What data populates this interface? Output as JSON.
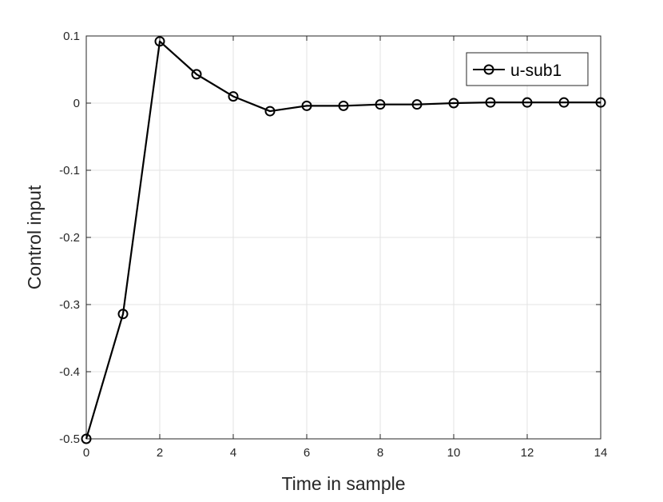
{
  "chart_data": {
    "type": "line",
    "title": "",
    "xlabel": "Time in sample",
    "ylabel": "Control input",
    "xlim": [
      0,
      14
    ],
    "ylim": [
      -0.5,
      0.1
    ],
    "xticks": [
      0,
      2,
      4,
      6,
      8,
      10,
      12,
      14
    ],
    "yticks": [
      -0.5,
      -0.4,
      -0.3,
      -0.2,
      -0.1,
      0,
      0.1
    ],
    "xtick_labels": [
      "0",
      "2",
      "4",
      "6",
      "8",
      "10",
      "12",
      "14"
    ],
    "ytick_labels": [
      "-0.5",
      "-0.4",
      "-0.3",
      "-0.2",
      "-0.1",
      "0",
      "0.1"
    ],
    "grid": true,
    "legend_position": "top-right",
    "series": [
      {
        "name": "u-sub1",
        "color": "#000000",
        "marker": "circle",
        "x": [
          0,
          1,
          2,
          3,
          4,
          5,
          6,
          7,
          8,
          9,
          10,
          11,
          12,
          13,
          14
        ],
        "y": [
          -0.5,
          -0.314,
          0.092,
          0.043,
          0.01,
          -0.012,
          -0.004,
          -0.004,
          -0.002,
          -0.002,
          0.0,
          0.001,
          0.001,
          0.001,
          0.001
        ]
      }
    ]
  }
}
